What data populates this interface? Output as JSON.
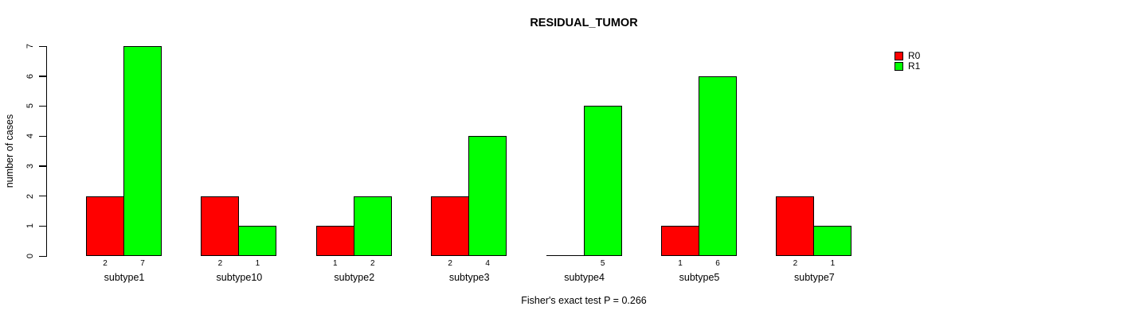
{
  "chart_data": {
    "type": "bar",
    "title": "RESIDUAL_TUMOR",
    "xlabel": "",
    "ylabel": "number of cases",
    "categories": [
      "subtype1",
      "subtype10",
      "subtype2",
      "subtype3",
      "subtype4",
      "subtype5",
      "subtype7"
    ],
    "series": [
      {
        "name": "R0",
        "color": "#ff0000",
        "values": [
          2,
          2,
          1,
          2,
          0,
          1,
          2
        ]
      },
      {
        "name": "R1",
        "color": "#00ff00",
        "values": [
          7,
          1,
          2,
          4,
          5,
          6,
          1
        ]
      }
    ],
    "ylim": [
      0,
      7
    ],
    "yticks": [
      0,
      1,
      2,
      3,
      4,
      5,
      6,
      7
    ],
    "bar_value_labels": [
      [
        "2",
        "7"
      ],
      [
        "2",
        "1"
      ],
      [
        "1",
        "2"
      ],
      [
        "2",
        "4"
      ],
      [
        "",
        "5"
      ],
      [
        "1",
        "6"
      ],
      [
        "2",
        "1"
      ]
    ],
    "legend_position": "top-right",
    "grid": false,
    "annotation": "Fisher's exact test P = 0.266"
  },
  "colors": {
    "background": "#ffffff",
    "bar_border": "#000000",
    "text": "#000000",
    "r0": "#ff0000",
    "r1": "#00ff00"
  }
}
